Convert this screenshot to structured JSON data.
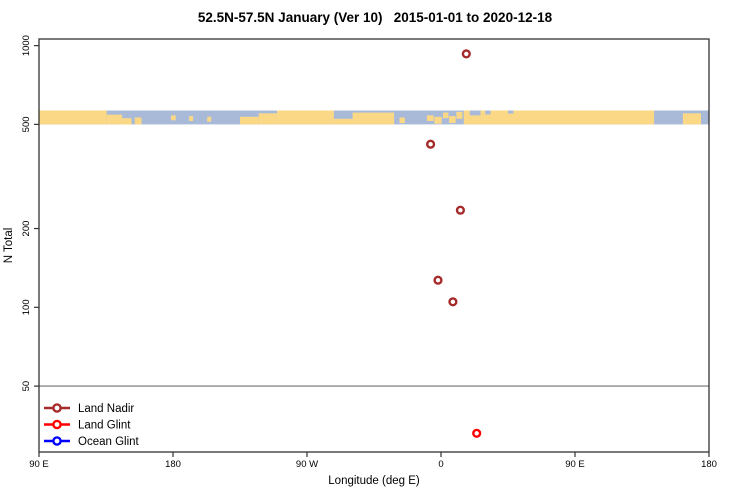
{
  "title": "52.5N-57.5N January (Ver 10)   2015-01-01 to 2020-12-18",
  "chart_data": {
    "type": "scatter",
    "title": "52.5N-57.5N January (Ver 10)   2015-01-01 to 2020-12-18",
    "xlabel": "Longitude (deg E)",
    "ylabel": "N Total",
    "x_axis": {
      "range_deg": [
        90,
        540
      ],
      "ticks": [
        {
          "deg": 90,
          "label": "90 E"
        },
        {
          "deg": 180,
          "label": "180"
        },
        {
          "deg": 270,
          "label": "90 W"
        },
        {
          "deg": 360,
          "label": "0"
        },
        {
          "deg": 450,
          "label": "90 E"
        },
        {
          "deg": 540,
          "label": "180"
        }
      ]
    },
    "y_axis": {
      "scale": "log",
      "range": [
        28,
        1060
      ],
      "ticks": [
        1000,
        500,
        200,
        100,
        50
      ]
    },
    "reference_line": {
      "value": 50,
      "color": "#8a8a8a"
    },
    "map_band": {
      "value_range": [
        500,
        565
      ],
      "ocean_color": "#A9BAD9",
      "land_color": "#FAD885",
      "land_patches": [
        {
          "x0": 0.0,
          "x1": 0.101,
          "y0": 0.0,
          "y1": 1.0
        },
        {
          "x0": 0.101,
          "x1": 0.124,
          "y0": 0.3,
          "y1": 1.0
        },
        {
          "x0": 0.124,
          "x1": 0.138,
          "y0": 0.55,
          "y1": 1.0
        },
        {
          "x0": 0.143,
          "x1": 0.153,
          "y0": 0.5,
          "y1": 1.0
        },
        {
          "x0": 0.197,
          "x1": 0.204,
          "y0": 0.35,
          "y1": 0.7
        },
        {
          "x0": 0.224,
          "x1": 0.23,
          "y0": 0.4,
          "y1": 0.75
        },
        {
          "x0": 0.251,
          "x1": 0.257,
          "y0": 0.45,
          "y1": 0.8
        },
        {
          "x0": 0.3,
          "x1": 0.328,
          "y0": 0.45,
          "y1": 1.0
        },
        {
          "x0": 0.328,
          "x1": 0.355,
          "y0": 0.2,
          "y1": 1.0
        },
        {
          "x0": 0.355,
          "x1": 0.44,
          "y0": 0.0,
          "y1": 1.0
        },
        {
          "x0": 0.44,
          "x1": 0.468,
          "y0": 0.6,
          "y1": 1.0
        },
        {
          "x0": 0.468,
          "x1": 0.53,
          "y0": 0.15,
          "y1": 1.0
        },
        {
          "x0": 0.538,
          "x1": 0.546,
          "y0": 0.5,
          "y1": 0.9
        },
        {
          "x0": 0.579,
          "x1": 0.589,
          "y0": 0.35,
          "y1": 0.75
        },
        {
          "x0": 0.59,
          "x1": 0.601,
          "y0": 0.45,
          "y1": 0.95
        },
        {
          "x0": 0.603,
          "x1": 0.611,
          "y0": 0.15,
          "y1": 0.55
        },
        {
          "x0": 0.612,
          "x1": 0.622,
          "y0": 0.4,
          "y1": 0.9
        },
        {
          "x0": 0.623,
          "x1": 0.632,
          "y0": 0.1,
          "y1": 0.6
        },
        {
          "x0": 0.634,
          "x1": 0.918,
          "y0": 0.0,
          "y1": 1.0
        },
        {
          "x0": 0.961,
          "x1": 0.988,
          "y0": 0.2,
          "y1": 1.0
        }
      ],
      "ocean_patches": [
        {
          "x0": 0.643,
          "x1": 0.659,
          "y0": 0.0,
          "y1": 0.35
        },
        {
          "x0": 0.666,
          "x1": 0.674,
          "y0": 0.0,
          "y1": 0.28
        },
        {
          "x0": 0.7,
          "x1": 0.708,
          "y0": 0.0,
          "y1": 0.22
        }
      ]
    },
    "series": [
      {
        "name": "Land Nadir",
        "color": "#A52A2A",
        "points": [
          {
            "lon": 17,
            "n": 930
          },
          {
            "lon": -7,
            "n": 420
          },
          {
            "lon": 13,
            "n": 235
          },
          {
            "lon": -2,
            "n": 127
          },
          {
            "lon": 8,
            "n": 105
          }
        ]
      },
      {
        "name": "Land Glint",
        "color": "#FF0000",
        "points": [
          {
            "lon": 24,
            "n": 33
          }
        ]
      },
      {
        "name": "Ocean Glint",
        "color": "#0000FF",
        "points": []
      }
    ],
    "legend": {
      "position": "bottom-left",
      "items": [
        "Land Nadir",
        "Land Glint",
        "Ocean Glint"
      ]
    }
  }
}
